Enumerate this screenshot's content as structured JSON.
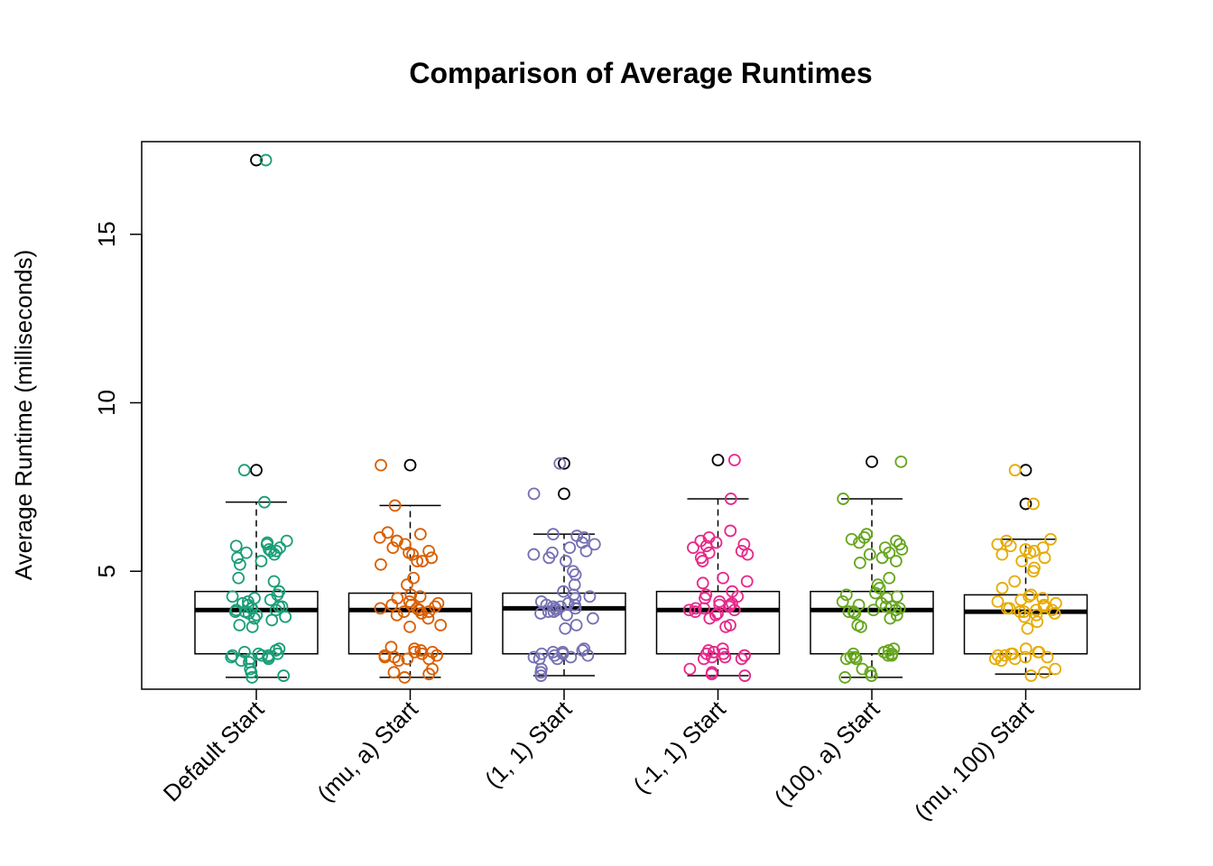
{
  "chart_data": {
    "type": "box",
    "title": "Comparison of Average Runtimes",
    "xlabel": "",
    "ylabel": "Average Runtime (milliseconds)",
    "ylim": [
      1.5,
      17.75
    ],
    "y_ticks": [
      5,
      10,
      15
    ],
    "categories": [
      "Default Start",
      "(mu, a) Start",
      "(1, 1) Start",
      "(-1, 1) Start",
      "(100, a) Start",
      "(mu, 100) Start"
    ],
    "series": [
      {
        "category": "Default Start",
        "color": "#1B9E77",
        "box": {
          "min": 1.85,
          "q1": 2.55,
          "median": 3.85,
          "q3": 4.4,
          "max": 7.05
        },
        "outliers": [
          17.2,
          8.0
        ],
        "points": [
          17.2,
          8.0,
          7.05,
          5.9,
          5.85,
          5.8,
          5.75,
          5.7,
          5.65,
          5.6,
          5.6,
          5.55,
          5.5,
          5.4,
          5.3,
          5.2,
          4.8,
          4.7,
          4.4,
          4.3,
          4.25,
          4.2,
          4.15,
          4.1,
          4.05,
          4.0,
          3.95,
          3.95,
          3.9,
          3.9,
          3.85,
          3.85,
          3.8,
          3.8,
          3.75,
          3.7,
          3.65,
          3.6,
          3.55,
          3.4,
          3.35,
          2.7,
          2.65,
          2.6,
          2.55,
          2.55,
          2.5,
          2.5,
          2.5,
          2.45,
          2.45,
          2.4,
          2.4,
          2.35,
          2.3,
          2.1,
          2.0,
          1.9,
          1.85
        ]
      },
      {
        "category": "(mu, a) Start",
        "color": "#D95F02",
        "box": {
          "min": 1.85,
          "q1": 2.55,
          "median": 3.85,
          "q3": 4.35,
          "max": 6.95
        },
        "outliers": [
          8.15
        ],
        "points": [
          8.15,
          6.95,
          6.15,
          6.1,
          6.0,
          5.9,
          5.9,
          5.8,
          5.7,
          5.6,
          5.55,
          5.5,
          5.4,
          5.3,
          5.3,
          5.2,
          4.8,
          4.6,
          4.3,
          4.25,
          4.2,
          4.1,
          4.05,
          4.0,
          4.0,
          3.95,
          3.9,
          3.9,
          3.85,
          3.85,
          3.8,
          3.8,
          3.75,
          3.7,
          3.6,
          3.4,
          3.35,
          2.75,
          2.7,
          2.65,
          2.6,
          2.6,
          2.55,
          2.5,
          2.5,
          2.45,
          2.45,
          2.4,
          2.4,
          2.35,
          2.1,
          2.0,
          1.95,
          1.85
        ]
      },
      {
        "category": "(1, 1) Start",
        "color": "#7570B3",
        "box": {
          "min": 1.9,
          "q1": 2.55,
          "median": 3.9,
          "q3": 4.35,
          "max": 6.1
        },
        "outliers": [
          8.2,
          7.3
        ],
        "points": [
          8.2,
          7.3,
          6.1,
          6.05,
          6.0,
          5.85,
          5.8,
          5.7,
          5.6,
          5.55,
          5.5,
          5.4,
          5.3,
          5.0,
          4.9,
          4.6,
          4.4,
          4.3,
          4.25,
          4.2,
          4.1,
          4.05,
          4.0,
          4.0,
          3.95,
          3.95,
          3.9,
          3.9,
          3.85,
          3.8,
          3.8,
          3.75,
          3.7,
          3.6,
          3.4,
          3.3,
          2.7,
          2.65,
          2.6,
          2.6,
          2.55,
          2.55,
          2.5,
          2.5,
          2.45,
          2.45,
          2.4,
          2.4,
          2.1,
          2.0,
          1.9
        ]
      },
      {
        "category": "(-1, 1) Start",
        "color": "#E7298A",
        "box": {
          "min": 1.9,
          "q1": 2.55,
          "median": 3.85,
          "q3": 4.4,
          "max": 7.15
        },
        "outliers": [
          8.3
        ],
        "points": [
          8.3,
          7.15,
          6.2,
          6.0,
          5.9,
          5.85,
          5.8,
          5.75,
          5.7,
          5.6,
          5.55,
          5.5,
          5.4,
          5.3,
          4.8,
          4.7,
          4.65,
          4.4,
          4.3,
          4.25,
          4.2,
          4.1,
          4.05,
          4.0,
          4.0,
          3.95,
          3.9,
          3.9,
          3.85,
          3.85,
          3.8,
          3.75,
          3.7,
          3.6,
          3.4,
          3.35,
          2.7,
          2.65,
          2.6,
          2.6,
          2.55,
          2.55,
          2.5,
          2.5,
          2.45,
          2.45,
          2.4,
          2.4,
          2.1,
          2.0,
          1.95,
          1.9
        ]
      },
      {
        "category": "(100, a) Start",
        "color": "#66A61E",
        "box": {
          "min": 1.85,
          "q1": 2.55,
          "median": 3.85,
          "q3": 4.4,
          "max": 7.15
        },
        "outliers": [
          8.25
        ],
        "points": [
          8.25,
          7.15,
          6.1,
          6.0,
          5.95,
          5.9,
          5.85,
          5.8,
          5.7,
          5.65,
          5.55,
          5.5,
          5.4,
          5.3,
          5.25,
          4.8,
          4.6,
          4.5,
          4.35,
          4.3,
          4.25,
          4.2,
          4.1,
          4.05,
          4.0,
          3.95,
          3.95,
          3.9,
          3.85,
          3.85,
          3.8,
          3.8,
          3.75,
          3.7,
          3.6,
          3.4,
          3.35,
          2.7,
          2.65,
          2.6,
          2.6,
          2.55,
          2.55,
          2.5,
          2.5,
          2.45,
          2.45,
          2.4,
          2.4,
          2.1,
          2.0,
          1.9,
          1.85
        ]
      },
      {
        "category": "(mu, 100) Start",
        "color": "#E6AB02",
        "box": {
          "min": 1.95,
          "q1": 2.55,
          "median": 3.8,
          "q3": 4.3,
          "max": 5.95
        },
        "outliers": [
          8.0,
          7.0
        ],
        "points": [
          8.0,
          7.0,
          5.95,
          5.9,
          5.8,
          5.75,
          5.7,
          5.65,
          5.6,
          5.55,
          5.5,
          5.4,
          5.3,
          5.1,
          5.0,
          4.7,
          4.5,
          4.3,
          4.25,
          4.2,
          4.15,
          4.1,
          4.05,
          4.0,
          3.95,
          3.9,
          3.9,
          3.85,
          3.85,
          3.8,
          3.8,
          3.75,
          3.7,
          3.65,
          3.5,
          3.3,
          2.7,
          2.6,
          2.6,
          2.55,
          2.55,
          2.5,
          2.5,
          2.45,
          2.45,
          2.4,
          2.4,
          2.35,
          2.1,
          2.0,
          1.9
        ]
      }
    ]
  }
}
